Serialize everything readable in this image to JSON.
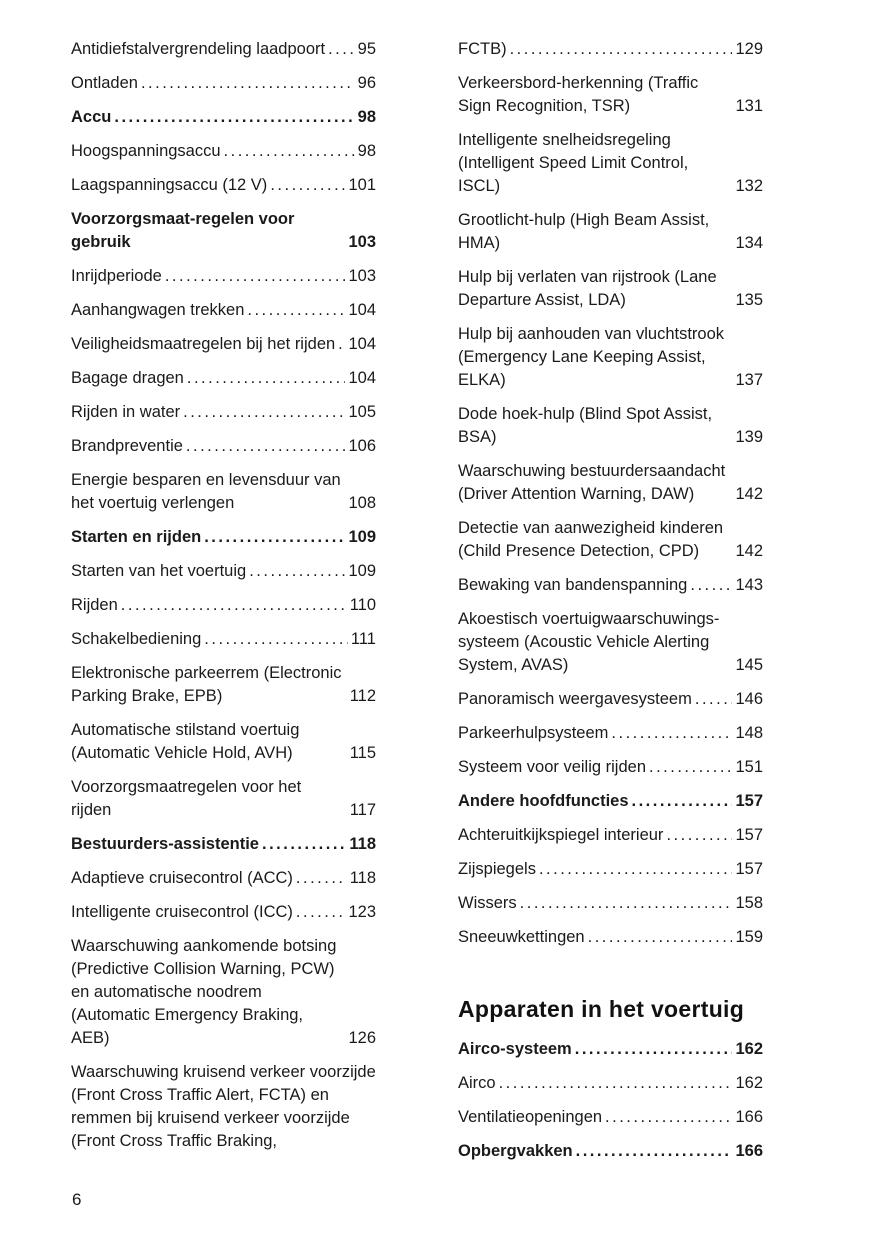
{
  "colors": {
    "text": "#1a1a1a",
    "heading": "#111111",
    "background": "#ffffff"
  },
  "document": {
    "footer_page_number": "6",
    "columns": [
      {
        "blocks": [
          {
            "type": "entry",
            "bold": false,
            "label": "Antidiefstalvergrendeling laadpoort",
            "page": "95"
          },
          {
            "type": "entry",
            "bold": false,
            "label": "Ontladen",
            "page": "96"
          },
          {
            "type": "entry",
            "bold": true,
            "label": "Accu",
            "page": "98"
          },
          {
            "type": "entry",
            "bold": false,
            "label": "Hoogspanningsaccu",
            "page": "98"
          },
          {
            "type": "entry",
            "bold": false,
            "label": "Laagspanningsaccu (12 V)",
            "page": "101"
          },
          {
            "type": "entry",
            "bold": true,
            "label": "Voorzorgsmaat-regelen voor gebruik",
            "page": "103"
          },
          {
            "type": "entry",
            "bold": false,
            "label": "Inrijdperiode",
            "page": "103"
          },
          {
            "type": "entry",
            "bold": false,
            "label": "Aanhangwagen trekken",
            "page": "104"
          },
          {
            "type": "entry",
            "bold": false,
            "label": "Veiligheidsmaatregelen bij het rijden",
            "page": "104"
          },
          {
            "type": "entry",
            "bold": false,
            "label": "Bagage dragen",
            "page": "104"
          },
          {
            "type": "entry",
            "bold": false,
            "label": "Rijden in water",
            "page": "105"
          },
          {
            "type": "entry",
            "bold": false,
            "label": "Brandpreventie",
            "page": "106"
          },
          {
            "type": "entry",
            "bold": false,
            "label": "Energie besparen en levensduur van het voertuig verlengen",
            "page": "108"
          },
          {
            "type": "entry",
            "bold": true,
            "label": "Starten en rijden",
            "page": "109"
          },
          {
            "type": "entry",
            "bold": false,
            "label": "Starten van het voertuig",
            "page": "109"
          },
          {
            "type": "entry",
            "bold": false,
            "label": "Rijden",
            "page": "110"
          },
          {
            "type": "entry",
            "bold": false,
            "label": "Schakelbediening",
            "page": "111"
          },
          {
            "type": "entry",
            "bold": false,
            "label": "Elektronische parkeerrem (Electronic Parking Brake, EPB)",
            "page": "112"
          },
          {
            "type": "entry",
            "bold": false,
            "label": "Automatische stilstand voertuig (Automatic Vehicle Hold, AVH)",
            "page": "115"
          },
          {
            "type": "entry",
            "bold": false,
            "label": "Voorzorgsmaatregelen voor het rijden",
            "page": "117"
          },
          {
            "type": "entry",
            "bold": true,
            "label": "Bestuurders-assistentie",
            "page": "118"
          },
          {
            "type": "entry",
            "bold": false,
            "label": "Adaptieve cruisecontrol (ACC)",
            "page": "118"
          },
          {
            "type": "entry",
            "bold": false,
            "label": "Intelligente cruisecontrol (ICC)",
            "page": "123"
          },
          {
            "type": "entry",
            "bold": false,
            "label": "Waarschuwing aankomende botsing (Predictive Collision Warning, PCW) en automatische noodrem (Automatic Emergency Braking, AEB)",
            "page": "126"
          },
          {
            "type": "entry",
            "bold": false,
            "label": "Waarschuwing kruisend verkeer voorzijde (Front Cross Traffic Alert, FCTA) en remmen bij kruisend verkeer voorzijde (Front Cross Traffic Braking,",
            "page": ""
          }
        ]
      },
      {
        "blocks": [
          {
            "type": "entry",
            "bold": false,
            "label": "FCTB)",
            "page": "129"
          },
          {
            "type": "entry",
            "bold": false,
            "label": "Verkeersbord-herkenning (Traffic Sign Recognition, TSR)",
            "page": "131"
          },
          {
            "type": "entry",
            "bold": false,
            "label": "Intelligente snelheidsregeling (Intelligent Speed Limit Control, ISCL)",
            "page": "132"
          },
          {
            "type": "entry",
            "bold": false,
            "label": "Grootlicht-hulp (High Beam Assist, HMA)",
            "page": "134"
          },
          {
            "type": "entry",
            "bold": false,
            "label": "Hulp bij verlaten van rijstrook (Lane Departure Assist, LDA)",
            "page": "135"
          },
          {
            "type": "entry",
            "bold": false,
            "label": "Hulp bij aanhouden van vluchtstrook (Emergency Lane Keeping Assist, ELKA)",
            "page": "137"
          },
          {
            "type": "entry",
            "bold": false,
            "label": "Dode hoek-hulp (Blind Spot Assist, BSA)",
            "page": "139"
          },
          {
            "type": "entry",
            "bold": false,
            "label": "Waarschuwing bestuurdersaandacht (Driver Attention Warning, DAW)",
            "page": "142"
          },
          {
            "type": "entry",
            "bold": false,
            "label": "Detectie van aanwezigheid kinderen (Child Presence Detection, CPD)",
            "page": "142"
          },
          {
            "type": "entry",
            "bold": false,
            "label": "Bewaking van bandenspanning",
            "page": "143"
          },
          {
            "type": "entry",
            "bold": false,
            "label": "Akoestisch voertuigwaarschuwings-systeem (Acoustic Vehicle Alerting System, AVAS)",
            "page": "145"
          },
          {
            "type": "entry",
            "bold": false,
            "label": "Panoramisch weergavesysteem",
            "page": "146"
          },
          {
            "type": "entry",
            "bold": false,
            "label": "Parkeerhulpsysteem",
            "page": "148"
          },
          {
            "type": "entry",
            "bold": false,
            "label": "Systeem voor veilig rijden",
            "page": "151"
          },
          {
            "type": "entry",
            "bold": true,
            "label": "Andere hoofdfuncties",
            "page": "157"
          },
          {
            "type": "entry",
            "bold": false,
            "label": "Achteruitkijkspiegel interieur",
            "page": "157"
          },
          {
            "type": "entry",
            "bold": false,
            "label": "Zijspiegels",
            "page": "157"
          },
          {
            "type": "entry",
            "bold": false,
            "label": "Wissers",
            "page": "158"
          },
          {
            "type": "entry",
            "bold": false,
            "label": "Sneeuwkettingen",
            "page": "159"
          },
          {
            "type": "heading",
            "text": "Apparaten in het voertuig"
          },
          {
            "type": "entry",
            "bold": true,
            "label": "Airco-systeem",
            "page": "162"
          },
          {
            "type": "entry",
            "bold": false,
            "label": "Airco",
            "page": "162"
          },
          {
            "type": "entry",
            "bold": false,
            "label": "Ventilatieopeningen",
            "page": "166"
          },
          {
            "type": "entry",
            "bold": true,
            "label": "Opbergvakken",
            "page": "166"
          }
        ]
      }
    ]
  }
}
